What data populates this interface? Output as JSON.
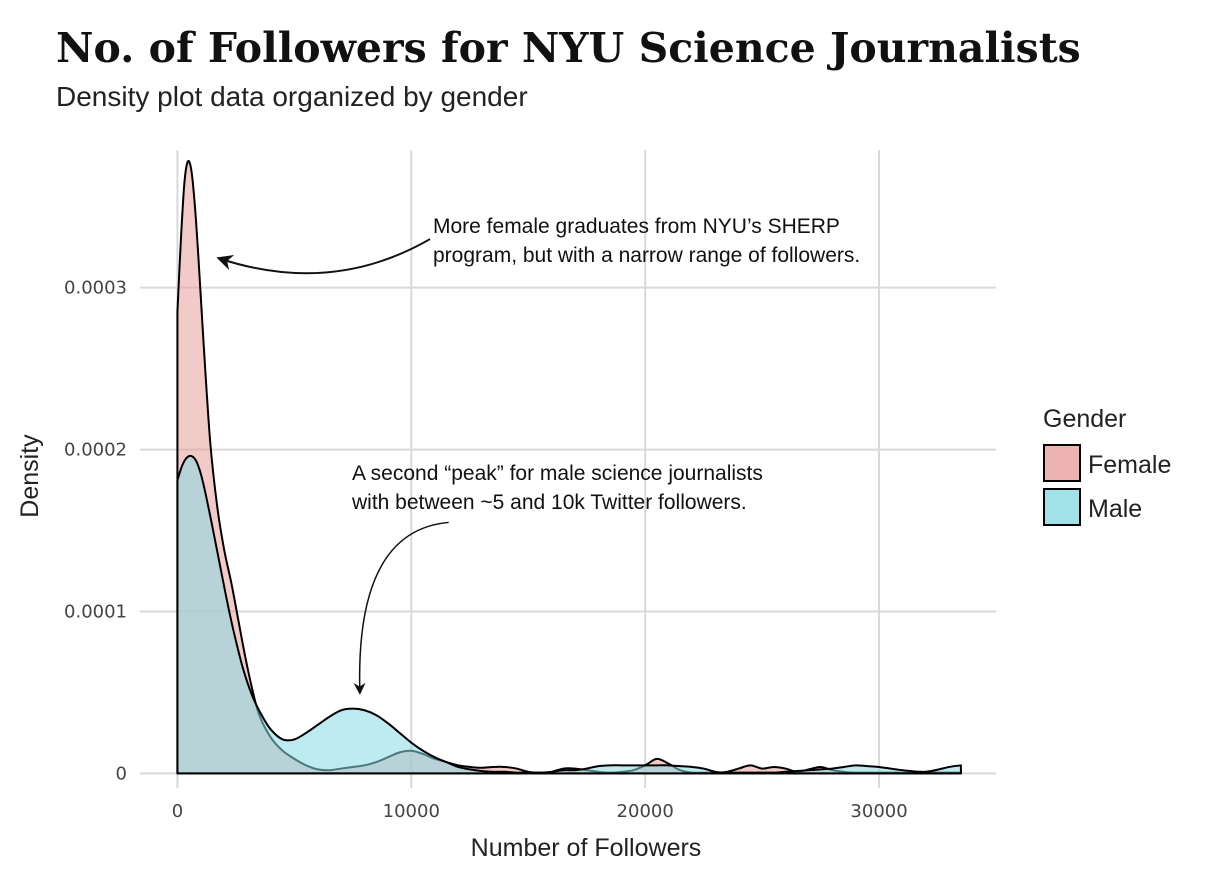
{
  "chart_data": {
    "type": "area",
    "title": "No. of Followers for NYU Science Journalists",
    "subtitle": "Density plot data organized by gender",
    "xlabel": "Number of Followers",
    "ylabel": "Density",
    "xlim": [
      -1600,
      35000
    ],
    "ylim": [
      -9e-06,
      0.000385
    ],
    "x_ticks": [
      0,
      10000,
      20000,
      30000
    ],
    "x_tick_labels": [
      "0",
      "10000",
      "20000",
      "30000"
    ],
    "y_ticks": [
      0,
      0.0001,
      0.0002,
      0.0003
    ],
    "y_tick_labels": [
      "0",
      "0.0001",
      "0.0002",
      "0.0003"
    ],
    "grid": true,
    "legend": {
      "title": "Gender",
      "placement": "right"
    },
    "colors": {
      "Female": "#e8a19d",
      "Male": "#88dbe2"
    },
    "series": [
      {
        "name": "Female",
        "x": [
          0,
          150,
          300,
          450,
          600,
          750,
          900,
          1100,
          1400,
          1700,
          2000,
          2300,
          2600,
          2900,
          3200,
          3500,
          4000,
          4500,
          5000,
          5500,
          6000,
          6500,
          7000,
          7500,
          8000,
          8500,
          9000,
          9500,
          10000,
          10500,
          11000,
          11500,
          12000,
          12500,
          13000,
          13500,
          14000,
          14500,
          15000,
          15500,
          16000,
          16500,
          17000,
          17500,
          18000,
          18500,
          19000,
          19500,
          20000,
          20500,
          21000,
          21500,
          22000,
          22500,
          23000,
          23500,
          24000,
          24500,
          25000,
          25500,
          26000,
          26500,
          27000,
          27500,
          28000,
          28500,
          29000,
          30000,
          31000,
          32000,
          33000,
          33500
        ],
        "y": [
          0.000285,
          0.00033,
          0.000365,
          0.000378,
          0.000372,
          0.00035,
          0.000318,
          0.00027,
          0.000205,
          0.000165,
          0.000138,
          0.000118,
          9.5e-05,
          7.2e-05,
          5.2e-05,
          3.6e-05,
          2.2e-05,
          1.4e-05,
          9e-06,
          5e-06,
          2.5e-06,
          2e-06,
          3e-06,
          4e-06,
          5e-06,
          7e-06,
          1e-05,
          1.3e-05,
          1.4e-05,
          1.2e-05,
          9e-06,
          7e-06,
          5e-06,
          4e-06,
          3.5e-06,
          4e-06,
          4e-06,
          3e-06,
          1e-06,
          5e-07,
          1e-06,
          3e-06,
          3e-06,
          2e-06,
          1e-06,
          5e-07,
          1e-06,
          2e-06,
          5e-06,
          9e-06,
          6e-06,
          2e-06,
          5e-07,
          5e-07,
          5e-07,
          1e-06,
          3e-06,
          5e-06,
          3e-06,
          4e-06,
          3e-06,
          1e-06,
          2.5e-06,
          4e-06,
          2e-06,
          1e-06,
          5e-07,
          5e-07,
          5e-07,
          5e-07,
          5e-07,
          5e-07
        ]
      },
      {
        "name": "Male",
        "x": [
          0,
          200,
          400,
          600,
          800,
          1000,
          1200,
          1500,
          1800,
          2100,
          2400,
          2800,
          3200,
          3600,
          4000,
          4500,
          5000,
          5500,
          6000,
          6500,
          7000,
          7500,
          8000,
          8500,
          9000,
          9500,
          10000,
          10500,
          11000,
          11500,
          12000,
          12500,
          13000,
          13500,
          14000,
          14500,
          15000,
          15500,
          16000,
          16500,
          17000,
          17500,
          18000,
          18500,
          19000,
          19500,
          20000,
          20500,
          21000,
          21500,
          22000,
          22500,
          23000,
          23500,
          24000,
          24500,
          25000,
          25500,
          26000,
          26500,
          27000,
          27500,
          28000,
          28500,
          29000,
          29500,
          30000,
          31000,
          32000,
          33000,
          33500
        ],
        "y": [
          0.000181,
          0.00019,
          0.000195,
          0.000196,
          0.000193,
          0.000185,
          0.000173,
          0.000152,
          0.00013,
          0.000108,
          8.8e-05,
          6.5e-05,
          4.8e-05,
          3.6e-05,
          2.7e-05,
          2.1e-05,
          2.1e-05,
          2.5e-05,
          3e-05,
          3.5e-05,
          3.9e-05,
          4e-05,
          3.9e-05,
          3.6e-05,
          3.1e-05,
          2.5e-05,
          1.9e-05,
          1.4e-05,
          1e-05,
          7e-06,
          4e-06,
          2.5e-06,
          1.5e-06,
          1e-06,
          1e-06,
          5e-07,
          5e-07,
          5e-07,
          1e-06,
          2e-06,
          2e-06,
          3e-06,
          4.5e-06,
          5e-06,
          5e-06,
          5e-06,
          5e-06,
          5e-06,
          5e-06,
          4.5e-06,
          4e-06,
          3e-06,
          1e-06,
          5e-07,
          5e-07,
          5e-07,
          5e-07,
          5e-07,
          1e-06,
          1.5e-06,
          2e-06,
          2.5e-06,
          3e-06,
          4e-06,
          5e-06,
          4.5e-06,
          4e-06,
          2e-06,
          1e-06,
          4e-06,
          5e-06
        ]
      }
    ],
    "annotations": [
      {
        "name": "female-peak-note",
        "lines": [
          "More female graduates from NYU’s SHERP",
          "program, but with a narrow range of followers."
        ],
        "arrow_from": [
          10800,
          0.00033
        ],
        "arrow_ctrl": [
          6600,
          0.000295
        ],
        "arrow_to": [
          1800,
          0.000318
        ]
      },
      {
        "name": "male-peak-note",
        "lines": [
          "A second “peak” for male science journalists",
          "with between ~5 and 10k Twitter followers."
        ],
        "arrow_from": [
          11600,
          0.000155
        ],
        "arrow_ctrl": [
          7600,
          0.00015
        ],
        "arrow_to": [
          7800,
          5e-05
        ]
      }
    ]
  }
}
